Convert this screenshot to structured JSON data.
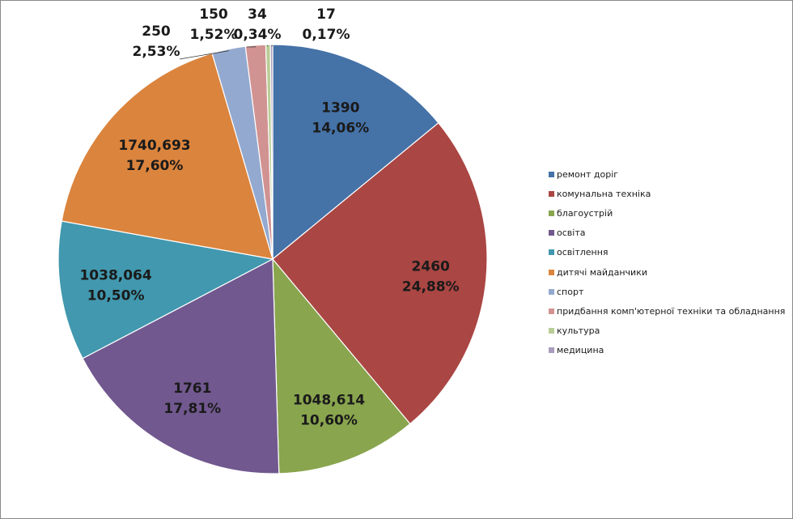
{
  "chart_data": {
    "type": "pie",
    "title": "",
    "legend_position": "right",
    "slices": [
      {
        "name": "ремонт доріг",
        "value": 1390,
        "value_label": "1390",
        "percent_label": "14,06%",
        "color": "#4572A7"
      },
      {
        "name": "комунальна техніка",
        "value": 2460,
        "value_label": "2460",
        "percent_label": "24,88%",
        "color": "#AA4643"
      },
      {
        "name": "благоустрій",
        "value": 1048.614,
        "value_label": "1048,614",
        "percent_label": "10,60%",
        "color": "#89A54E"
      },
      {
        "name": "освіта",
        "value": 1761,
        "value_label": "1761",
        "percent_label": "17,81%",
        "color": "#71588F"
      },
      {
        "name": "освітлення",
        "value": 1038.064,
        "value_label": "1038,064",
        "percent_label": "10,50%",
        "color": "#4198AF"
      },
      {
        "name": "дитячі майданчики",
        "value": 1740.693,
        "value_label": "1740,693",
        "percent_label": "17,60%",
        "color": "#DB843D"
      },
      {
        "name": "спорт",
        "value": 250,
        "value_label": "250",
        "percent_label": "2,53%",
        "color": "#93A9CF"
      },
      {
        "name": "придбання комп'ютерної техніки та обладнання",
        "value": 150,
        "value_label": "150",
        "percent_label": "1,52%",
        "color": "#D19392"
      },
      {
        "name": "культура",
        "value": 34,
        "value_label": "34",
        "percent_label": "0,34%",
        "color": "#B9CD96"
      },
      {
        "name": "медицина",
        "value": 17,
        "value_label": "17",
        "percent_label": "0,17%",
        "color": "#A99BBD"
      }
    ]
  }
}
